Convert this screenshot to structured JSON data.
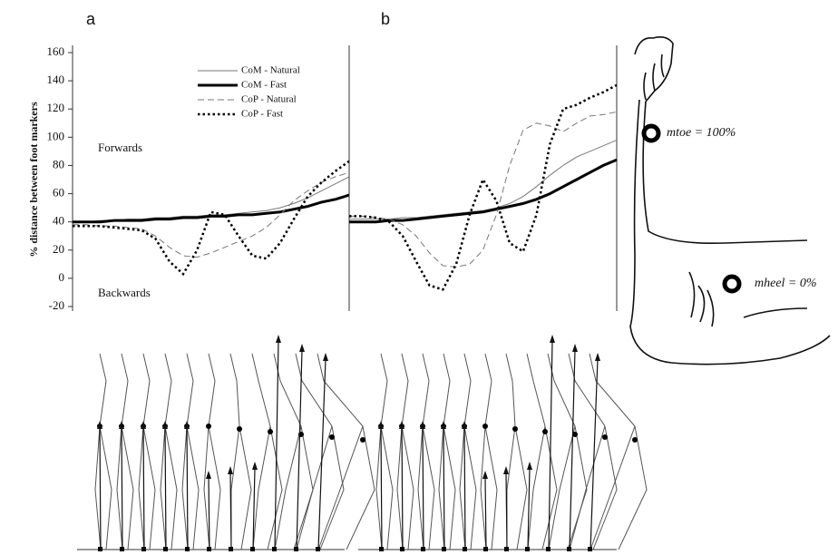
{
  "chart_data": [
    {
      "type": "line",
      "panel_label": "a",
      "y_label": "% distance between foot markers",
      "annotations": [
        "Forwards",
        "Backwards"
      ],
      "ylim": [
        -20,
        160
      ],
      "yticks": [
        -20,
        0,
        20,
        40,
        60,
        80,
        100,
        120,
        140,
        160
      ],
      "legend": "top-right",
      "series": [
        {
          "name": "CoM - Natural",
          "color": "#777777",
          "line_style": "solid",
          "line_width": 1,
          "values": [
            40,
            40,
            41,
            41,
            42,
            42,
            43,
            43,
            44,
            44,
            45,
            45,
            46,
            47,
            48,
            50,
            53,
            57,
            62,
            67,
            72
          ]
        },
        {
          "name": "CoM - Fast",
          "color": "#000000",
          "line_style": "solid",
          "line_width": 3,
          "values": [
            40,
            40,
            40,
            41,
            41,
            41,
            42,
            42,
            43,
            43,
            44,
            44,
            45,
            45,
            46,
            47,
            49,
            51,
            54,
            56,
            59
          ]
        },
        {
          "name": "CoP - Natural",
          "color": "#777777",
          "line_style": "dashed",
          "line_width": 1,
          "values": [
            38,
            38,
            37,
            37,
            36,
            35,
            30,
            22,
            16,
            15,
            18,
            22,
            26,
            30,
            36,
            45,
            55,
            62,
            68,
            72,
            75
          ]
        },
        {
          "name": "CoP - Fast",
          "color": "#000000",
          "line_style": "dotted",
          "line_width": 2.5,
          "values": [
            37,
            37,
            37,
            36,
            35,
            34,
            28,
            12,
            3,
            20,
            47,
            45,
            30,
            16,
            14,
            25,
            42,
            58,
            68,
            76,
            83
          ]
        }
      ]
    },
    {
      "type": "line",
      "panel_label": "b",
      "ylim": [
        -20,
        160
      ],
      "series": [
        {
          "name": "CoM - Natural",
          "color": "#777777",
          "line_style": "solid",
          "line_width": 1,
          "values": [
            42,
            42,
            42,
            42,
            43,
            43,
            44,
            45,
            46,
            47,
            48,
            50,
            53,
            58,
            65,
            73,
            80,
            86,
            90,
            94,
            98
          ]
        },
        {
          "name": "CoM - Fast",
          "color": "#000000",
          "line_style": "solid",
          "line_width": 3,
          "values": [
            40,
            40,
            40,
            41,
            41,
            42,
            43,
            44,
            45,
            46,
            47,
            49,
            51,
            53,
            56,
            60,
            65,
            70,
            75,
            80,
            84
          ]
        },
        {
          "name": "CoP - Natural",
          "color": "#777777",
          "line_style": "dashed",
          "line_width": 1,
          "values": [
            44,
            44,
            43,
            42,
            38,
            30,
            18,
            9,
            8,
            10,
            20,
            45,
            80,
            105,
            110,
            108,
            104,
            110,
            115,
            116,
            118
          ]
        },
        {
          "name": "CoP - Fast",
          "color": "#000000",
          "line_style": "dotted",
          "line_width": 2.5,
          "values": [
            44,
            44,
            43,
            40,
            30,
            12,
            -5,
            -8,
            10,
            45,
            70,
            55,
            25,
            19,
            45,
            95,
            120,
            123,
            128,
            132,
            137
          ]
        }
      ]
    }
  ],
  "foot": {
    "toe_label": "mtoe = 100%",
    "heel_label": "mheel = 0%"
  }
}
